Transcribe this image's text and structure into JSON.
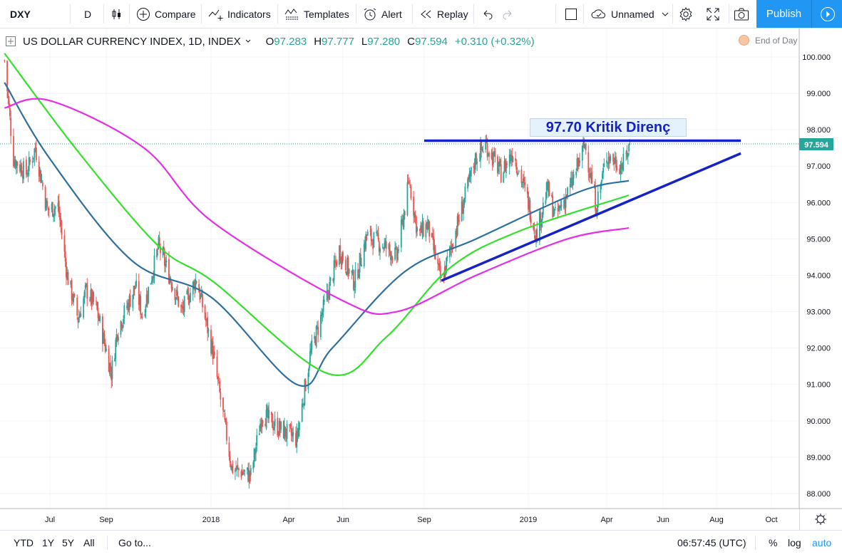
{
  "toolbar": {
    "symbol": "DXY",
    "interval": "D",
    "compare": "Compare",
    "indicators": "Indicators",
    "templates": "Templates",
    "alert": "Alert",
    "replay": "Replay",
    "layout_name": "Unnamed",
    "publish": "Publish"
  },
  "legend": {
    "name": "US DOLLAR CURRENCY INDEX, 1D, INDEX",
    "o_label": "O",
    "o": "97.283",
    "h_label": "H",
    "h": "97.777",
    "l_label": "L",
    "l": "97.280",
    "c_label": "C",
    "c": "97.594",
    "change": "+0.310 (+0.32%)",
    "end_of_day": "End of Day"
  },
  "annotation": "97.70 Kritik Direnç",
  "price_label": "97.594",
  "bottom": {
    "ranges": [
      "YTD",
      "1Y",
      "5Y",
      "All"
    ],
    "goto": "Go to...",
    "time": "06:57:45 (UTC)",
    "percent": "%",
    "log": "log",
    "auto": "auto"
  },
  "colors": {
    "up": "#26a69a",
    "down": "#ef5350",
    "ma_fast": "#2e6f9e",
    "ma_mid": "#33e12b",
    "ma_slow": "#e62ee6",
    "trend": "#1422c8",
    "accent": "#2196f3",
    "price_label_bg": "#26a69a"
  },
  "chart_data": {
    "type": "candlestick",
    "title": "US DOLLAR CURRENCY INDEX, 1D, INDEX",
    "y_ticks": [
      "100.000",
      "99.000",
      "98.000",
      "97.000",
      "96.000",
      "95.000",
      "94.000",
      "93.000",
      "92.000",
      "91.000",
      "90.000",
      "89.000",
      "88.000"
    ],
    "ylim": [
      87.6,
      100.5
    ],
    "x_ticks": [
      "Jul",
      "Sep",
      "2018",
      "Apr",
      "Jun",
      "Sep",
      "2019",
      "Apr",
      "Jun",
      "Aug",
      "Oct"
    ],
    "x_tick_dates": [
      "2017-07-01",
      "2017-09-01",
      "2018-01-01",
      "2018-04-01",
      "2018-06-01",
      "2018-09-01",
      "2019-01-01",
      "2019-04-01",
      "2019-06-01",
      "2019-08-01",
      "2019-10-01"
    ],
    "price_path": [
      [
        "2017-05-12",
        99.9
      ],
      [
        "2017-05-22",
        97.2
      ],
      [
        "2017-06-05",
        96.8
      ],
      [
        "2017-06-15",
        97.5
      ],
      [
        "2017-06-28",
        95.8
      ],
      [
        "2017-07-10",
        95.9
      ],
      [
        "2017-07-20",
        94.0
      ],
      [
        "2017-08-01",
        92.8
      ],
      [
        "2017-08-10",
        93.6
      ],
      [
        "2017-08-21",
        93.1
      ],
      [
        "2017-09-07",
        91.3
      ],
      [
        "2017-09-14",
        92.5
      ],
      [
        "2017-10-05",
        93.7
      ],
      [
        "2017-10-13",
        92.9
      ],
      [
        "2017-11-01",
        94.8
      ],
      [
        "2017-11-15",
        93.9
      ],
      [
        "2017-11-28",
        93.0
      ],
      [
        "2017-12-15",
        93.9
      ],
      [
        "2018-01-03",
        91.9
      ],
      [
        "2018-01-25",
        88.7
      ],
      [
        "2018-02-16",
        88.5
      ],
      [
        "2018-03-01",
        90.2
      ],
      [
        "2018-03-20",
        89.8
      ],
      [
        "2018-04-10",
        89.5
      ],
      [
        "2018-04-25",
        91.8
      ],
      [
        "2018-05-15",
        93.5
      ],
      [
        "2018-05-28",
        94.7
      ],
      [
        "2018-06-14",
        93.8
      ],
      [
        "2018-06-28",
        95.1
      ],
      [
        "2018-07-18",
        94.8
      ],
      [
        "2018-08-01",
        94.5
      ],
      [
        "2018-08-15",
        96.6
      ],
      [
        "2018-08-25",
        95.1
      ],
      [
        "2018-09-05",
        95.4
      ],
      [
        "2018-09-21",
        93.8
      ],
      [
        "2018-10-10",
        95.4
      ],
      [
        "2018-10-31",
        97.2
      ],
      [
        "2018-11-12",
        97.6
      ],
      [
        "2018-11-30",
        96.8
      ],
      [
        "2018-12-14",
        97.4
      ],
      [
        "2018-12-31",
        96.1
      ],
      [
        "2019-01-10",
        95.1
      ],
      [
        "2019-01-23",
        96.4
      ],
      [
        "2019-02-01",
        95.6
      ],
      [
        "2019-02-18",
        96.4
      ],
      [
        "2019-03-07",
        97.6
      ],
      [
        "2019-03-20",
        95.9
      ],
      [
        "2019-04-01",
        97.3
      ],
      [
        "2019-04-18",
        97.0
      ],
      [
        "2019-04-26",
        97.594
      ]
    ],
    "series": [
      {
        "name": "MA fast",
        "values": [
          [
            99.3,
            "2017-05-12"
          ],
          [
            97.2,
            "2017-07-01"
          ],
          [
            94.4,
            "2017-10-01"
          ],
          [
            93.4,
            "2018-01-01"
          ],
          [
            91.0,
            "2018-04-10"
          ],
          [
            92.0,
            "2018-05-20"
          ],
          [
            94.1,
            "2018-08-10"
          ],
          [
            95.0,
            "2018-11-01"
          ],
          [
            96.3,
            "2019-03-01"
          ],
          [
            96.6,
            "2019-04-25"
          ]
        ]
      },
      {
        "name": "MA mid",
        "values": [
          [
            100.1,
            "2017-05-12"
          ],
          [
            97.4,
            "2017-08-01"
          ],
          [
            94.8,
            "2017-11-01"
          ],
          [
            93.8,
            "2018-01-05"
          ],
          [
            91.3,
            "2018-05-15"
          ],
          [
            92.3,
            "2018-07-20"
          ],
          [
            94.2,
            "2018-10-01"
          ],
          [
            95.2,
            "2018-12-20"
          ],
          [
            96.2,
            "2019-04-25"
          ]
        ]
      },
      {
        "name": "MA slow",
        "values": [
          [
            98.6,
            "2017-05-12"
          ],
          [
            98.8,
            "2017-07-01"
          ],
          [
            97.5,
            "2017-10-15"
          ],
          [
            95.5,
            "2018-01-01"
          ],
          [
            93.3,
            "2018-06-01"
          ],
          [
            93.0,
            "2018-08-01"
          ],
          [
            94.0,
            "2018-11-01"
          ],
          [
            95.0,
            "2019-02-15"
          ],
          [
            95.3,
            "2019-04-25"
          ]
        ]
      }
    ],
    "lines": [
      {
        "type": "horizontal",
        "value": 97.7,
        "from": "2018-09-01",
        "to": "2019-08-28"
      },
      {
        "type": "trend",
        "from": [
          "2018-09-21",
          93.85
        ],
        "to": [
          "2019-08-28",
          97.35
        ]
      }
    ],
    "last_price": 97.594
  }
}
